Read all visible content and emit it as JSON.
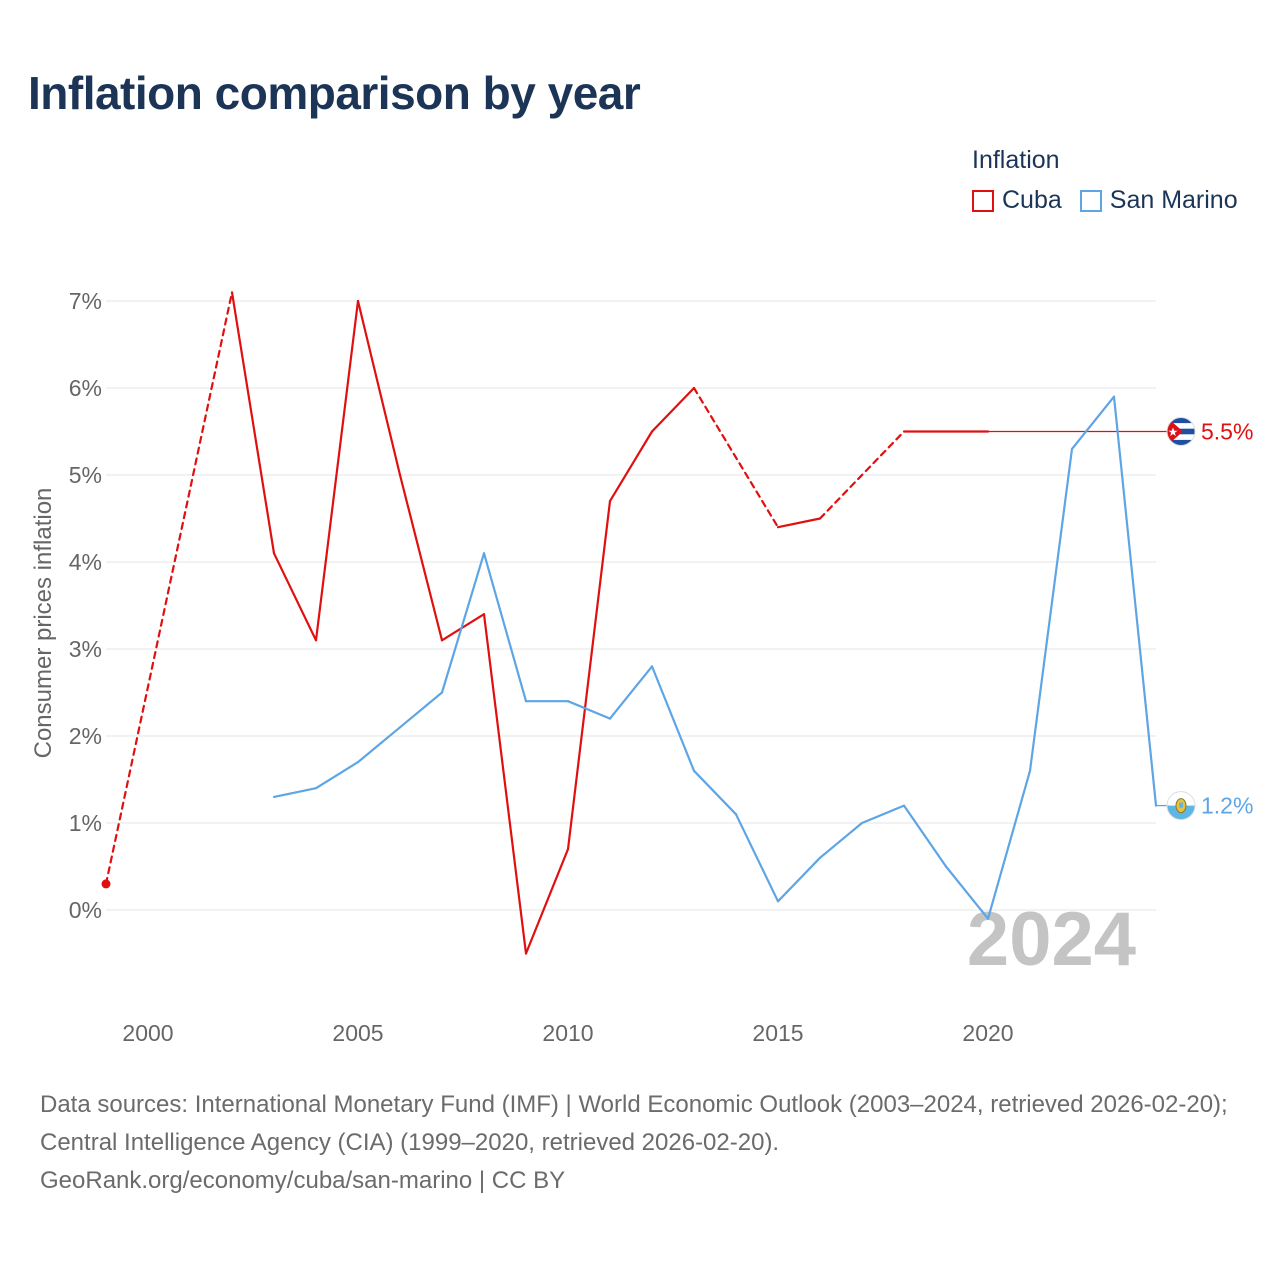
{
  "title": "Inflation comparison by year",
  "legend": {
    "title": "Inflation",
    "items": [
      {
        "name": "Cuba",
        "color": "#e01010"
      },
      {
        "name": "San Marino",
        "color": "#5ea5e6"
      }
    ]
  },
  "footer": {
    "line1": "Data sources: International Monetary Fund (IMF) | World Economic Outlook (2003–2024, retrieved 2026-02-20); Central Intelligence Agency (CIA) (1999–2020, retrieved 2026-02-20).",
    "line2": "GeoRank.org/economy/cuba/san-marino | CC BY"
  },
  "chart_data": {
    "type": "line",
    "title": "Inflation comparison by year",
    "xlabel": "",
    "ylabel": "Consumer prices inflation",
    "xlim": [
      1999,
      2024
    ],
    "ylim": [
      -1,
      7
    ],
    "x_ticks": [
      2000,
      2005,
      2010,
      2015,
      2020
    ],
    "y_ticks": [
      0,
      1,
      2,
      3,
      4,
      5,
      6,
      7
    ],
    "y_tick_labels": [
      "0%",
      "1%",
      "2%",
      "3%",
      "4%",
      "5%",
      "6%",
      "7%"
    ],
    "year_watermark": "2024",
    "series": [
      {
        "name": "Cuba",
        "color": "#e01010",
        "end_label": "5.5%",
        "end_value": 5.5,
        "flag": "cuba-flag-icon",
        "points": [
          {
            "x": 1999,
            "y": 0.3
          },
          {
            "x": 2002,
            "y": 7.1
          },
          {
            "x": 2003,
            "y": 4.1
          },
          {
            "x": 2004,
            "y": 3.1
          },
          {
            "x": 2005,
            "y": 7.0
          },
          {
            "x": 2006,
            "y": 5.0
          },
          {
            "x": 2007,
            "y": 3.1
          },
          {
            "x": 2008,
            "y": 3.4
          },
          {
            "x": 2009,
            "y": -0.5
          },
          {
            "x": 2010,
            "y": 0.7
          },
          {
            "x": 2011,
            "y": 4.7
          },
          {
            "x": 2012,
            "y": 5.5
          },
          {
            "x": 2013,
            "y": 6.0
          },
          {
            "x": 2015,
            "y": 4.4
          },
          {
            "x": 2016,
            "y": 4.5
          },
          {
            "x": 2018,
            "y": 5.5
          },
          {
            "x": 2020,
            "y": 5.5
          }
        ],
        "dashed_segments": [
          [
            1999,
            2002
          ],
          [
            2013,
            2015
          ],
          [
            2016,
            2018
          ]
        ]
      },
      {
        "name": "San Marino",
        "color": "#5ea5e6",
        "end_label": "1.2%",
        "end_value": 1.2,
        "flag": "san-marino-flag-icon",
        "points": [
          {
            "x": 2003,
            "y": 1.3
          },
          {
            "x": 2004,
            "y": 1.4
          },
          {
            "x": 2005,
            "y": 1.7
          },
          {
            "x": 2006,
            "y": 2.1
          },
          {
            "x": 2007,
            "y": 2.5
          },
          {
            "x": 2008,
            "y": 4.1
          },
          {
            "x": 2009,
            "y": 2.4
          },
          {
            "x": 2010,
            "y": 2.4
          },
          {
            "x": 2011,
            "y": 2.2
          },
          {
            "x": 2012,
            "y": 2.8
          },
          {
            "x": 2013,
            "y": 1.6
          },
          {
            "x": 2014,
            "y": 1.1
          },
          {
            "x": 2015,
            "y": 0.1
          },
          {
            "x": 2016,
            "y": 0.6
          },
          {
            "x": 2017,
            "y": 1.0
          },
          {
            "x": 2018,
            "y": 1.2
          },
          {
            "x": 2019,
            "y": 0.5
          },
          {
            "x": 2020,
            "y": -0.1
          },
          {
            "x": 2021,
            "y": 1.6
          },
          {
            "x": 2022,
            "y": 5.3
          },
          {
            "x": 2023,
            "y": 5.9
          },
          {
            "x": 2024,
            "y": 1.2
          }
        ],
        "dashed_segments": []
      }
    ]
  }
}
